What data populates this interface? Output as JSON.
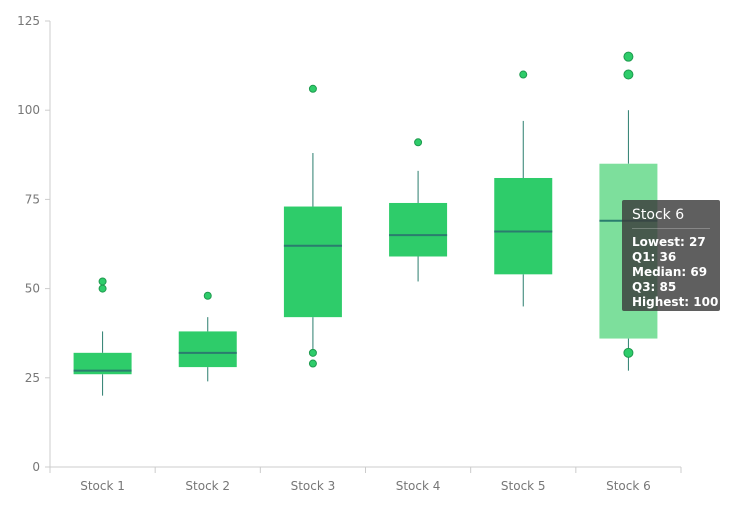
{
  "chart_data": {
    "type": "boxplot",
    "categories": [
      "Stock 1",
      "Stock 2",
      "Stock 3",
      "Stock 4",
      "Stock 5",
      "Stock 6"
    ],
    "series": [
      {
        "boxes": [
          {
            "low": 20,
            "q1": 26,
            "median": 27,
            "q3": 32,
            "high": 38
          },
          {
            "low": 24,
            "q1": 28,
            "median": 32,
            "q3": 38,
            "high": 42
          },
          {
            "low": 32,
            "q1": 42,
            "median": 62,
            "q3": 73,
            "high": 88
          },
          {
            "low": 52,
            "q1": 59,
            "median": 65,
            "q3": 74,
            "high": 83
          },
          {
            "low": 45,
            "q1": 54,
            "median": 66,
            "q3": 81,
            "high": 97
          },
          {
            "low": 27,
            "q1": 36,
            "median": 69,
            "q3": 85,
            "high": 100
          }
        ],
        "outliers": [
          {
            "category": "Stock 1",
            "value": 52
          },
          {
            "category": "Stock 1",
            "value": 50
          },
          {
            "category": "Stock 2",
            "value": 48
          },
          {
            "category": "Stock 3",
            "value": 106
          },
          {
            "category": "Stock 3",
            "value": 32
          },
          {
            "category": "Stock 3",
            "value": 29
          },
          {
            "category": "Stock 4",
            "value": 91
          },
          {
            "category": "Stock 5",
            "value": 110
          },
          {
            "category": "Stock 6",
            "value": 115
          },
          {
            "category": "Stock 6",
            "value": 110
          },
          {
            "category": "Stock 6",
            "value": 32
          }
        ]
      }
    ],
    "y_ticks": [
      "0",
      "25",
      "50",
      "75",
      "100",
      "125"
    ],
    "ylim": [
      0,
      125
    ],
    "grid": false,
    "highlighted_category": "Stock 6",
    "colors": {
      "box": "#2ecc6a",
      "box_highlight": "#7ddf9c",
      "median_whisker": "#2a7d6e",
      "outlier": "#2ecc6a",
      "outlier_stroke": "#1e9a4e",
      "axis": "#cccccc"
    },
    "tooltip": {
      "title": "Stock 6",
      "rows": [
        "Lowest: 27",
        "Q1: 36",
        "Median: 69",
        "Q3: 85",
        "Highest: 100"
      ]
    }
  }
}
